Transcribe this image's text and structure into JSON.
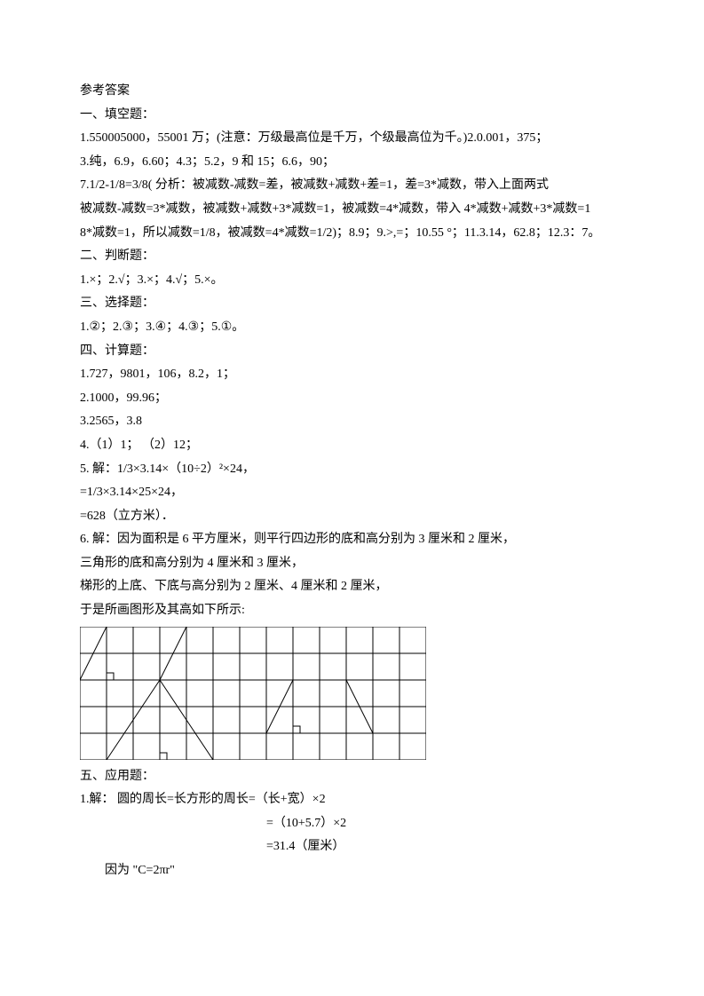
{
  "title": "参考答案",
  "s1_head": "一、填空题：",
  "s1_l1": "1.550005000，55001 万；(注意：万级最高位是千万，个级最高位为千。)2.0.001，375；",
  "s1_l2": "3.纯，6.9，6.60；4.3；5.2，9 和 15；6.6，90；",
  "s1_l3": "7.1/2-1/8=3/8( 分析：被减数-减数=差，被减数+减数+差=1，差=3*减数，带入上面两式",
  "s1_l4": "被减数-减数=3*减数，被减数+减数+3*减数=1，被减数=4*减数，带入 4*减数+减数+3*减数=1",
  "s1_l5": "8*减数=1，所以减数=1/8，被减数=4*减数=1/2)；8.9；9.>,=；10.55 °；11.3.14，62.8；12.3：7。",
  "s2_head": "二、判断题：",
  "s2_l1": "1.×；2.√；3.×；4.√；5.×。",
  "s3_head": "三、选择题：",
  "s3_l1": "1.②；2.③；3.④；4.③；5.①。",
  "s4_head": "四、计算题：",
  "s4_l1": "1.727，9801，106，8.2，1；",
  "s4_l2": "2.1000，99.96；",
  "s4_l3": "3.2565，3.8",
  "s4_l4": "4.（1）1； （2）12；",
  "s4_l5": "5. 解：1/3×3.14×（10÷2）²×24，",
  "s4_l6": "=1/3×3.14×25×24，",
  "s4_l7": "=628（立方米）．",
  "s4_l8": "6. 解：因为面积是 6 平方厘米，则平行四边形的底和高分别为 3 厘米和 2 厘米，",
  "s4_l9": "三角形的底和高分别为 4 厘米和 3 厘米，",
  "s4_l10": "梯形的上底、下底与高分别为 2 厘米、4 厘米和 2 厘米，",
  "s4_l11": "于是所画图形及其高如下所示:",
  "s5_head": "五、应用题：",
  "s5_l1": "1.解： 圆的周长=长方形的周长=（长+宽）×2",
  "s5_l2": "=（10+5.7）×2",
  "s5_l3": "=31.4（厘米）",
  "s5_l4": "因为 \"C=2πr\"",
  "grid": {
    "cell": 30,
    "cols": 13,
    "rows": 5,
    "stroke": "#000000",
    "stroke_width": 1,
    "dash": "4,3"
  }
}
